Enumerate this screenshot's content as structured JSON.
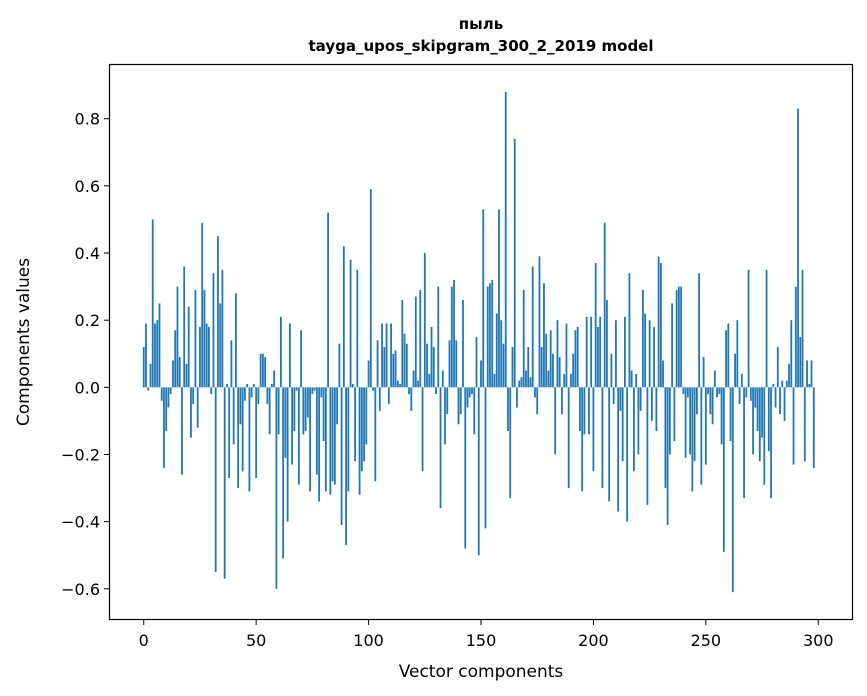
{
  "chart_data": {
    "type": "bar",
    "title": [
      "пыль",
      "tayga_upos_skipgram_300_2_2019 model"
    ],
    "xlabel": "Vector components",
    "ylabel": "Components values",
    "xlim": [
      -15,
      315
    ],
    "ylim": [
      -0.69,
      0.96
    ],
    "x_ticks": [
      0,
      50,
      100,
      150,
      200,
      250,
      300
    ],
    "x_tick_labels": [
      "0",
      "50",
      "100",
      "150",
      "200",
      "250",
      "300"
    ],
    "y_ticks": [
      -0.6,
      -0.4,
      -0.2,
      0.0,
      0.2,
      0.4,
      0.6,
      0.8
    ],
    "y_tick_labels": [
      "−0.6",
      "−0.4",
      "−0.2",
      "0.0",
      "0.2",
      "0.4",
      "0.6",
      "0.8"
    ],
    "grid": false,
    "bar_color": "#1f77b4",
    "values": [
      0.12,
      0.19,
      -0.01,
      0.07,
      0.5,
      0.19,
      0.2,
      0.25,
      -0.04,
      -0.24,
      -0.13,
      -0.06,
      -0.02,
      0.08,
      0.17,
      0.3,
      0.09,
      -0.26,
      0.36,
      0.07,
      0.24,
      -0.15,
      -0.05,
      0.29,
      -0.12,
      0.18,
      0.49,
      0.29,
      0.19,
      0.18,
      -0.02,
      0.34,
      -0.55,
      0.45,
      0.25,
      0.35,
      -0.57,
      0.01,
      -0.27,
      0.14,
      -0.17,
      0.28,
      -0.3,
      -0.11,
      -0.25,
      -0.04,
      0.01,
      -0.31,
      -0.03,
      0.01,
      -0.27,
      -0.05,
      0.1,
      0.1,
      0.09,
      -0.05,
      -0.14,
      0.01,
      0.05,
      -0.6,
      -0.14,
      0.21,
      -0.51,
      -0.21,
      -0.4,
      0.19,
      -0.23,
      -0.13,
      -0.01,
      -0.29,
      0.17,
      -0.14,
      -0.13,
      -0.09,
      -0.31,
      -0.02,
      -0.01,
      -0.26,
      -0.34,
      -0.03,
      -0.16,
      -0.31,
      0.52,
      -0.32,
      -0.28,
      -0.29,
      -0.11,
      0.13,
      -0.41,
      0.42,
      -0.47,
      -0.31,
      0.38,
      0.01,
      -0.22,
      0.35,
      -0.32,
      -0.25,
      -0.22,
      -0.17,
      0.08,
      0.59,
      -0.01,
      -0.28,
      0.14,
      -0.07,
      0.19,
      0.12,
      0.19,
      -0.05,
      0.19,
      0.1,
      0.11,
      0.02,
      0.01,
      0.26,
      0.16,
      0.13,
      -0.02,
      -0.07,
      0.05,
      0.27,
      0.02,
      0.29,
      -0.25,
      0.4,
      0.13,
      0.04,
      0.18,
      0.12,
      -0.02,
      0.3,
      -0.36,
      0.05,
      -0.17,
      -0.08,
      0.14,
      0.3,
      0.32,
      0.14,
      -0.11,
      -0.08,
      0.26,
      -0.48,
      -0.06,
      -0.03,
      -0.02,
      -0.14,
      0.15,
      -0.5,
      0.08,
      0.53,
      -0.42,
      0.3,
      0.31,
      0.32,
      0.04,
      0.22,
      0.53,
      0.2,
      0.13,
      0.88,
      -0.13,
      -0.33,
      0.12,
      0.74,
      -0.06,
      0.02,
      0.03,
      0.29,
      0.05,
      0.12,
      0.03,
      0.36,
      -0.03,
      -0.08,
      0.39,
      0.12,
      0.31,
      0.16,
      0.05,
      0.17,
      0.1,
      -0.2,
      0.2,
      0.09,
      -0.08,
      0.04,
      0.19,
      -0.3,
      0.04,
      0.1,
      0.17,
      0.18,
      -0.13,
      -0.31,
      -0.14,
      0.21,
      -0.14,
      0.21,
      -0.25,
      0.37,
      0.18,
      0.21,
      -0.3,
      0.49,
      0.26,
      -0.34,
      0.1,
      -0.05,
      0.2,
      -0.37,
      -0.07,
      -0.22,
      0.21,
      -0.4,
      0.34,
      0.05,
      -0.25,
      0.04,
      -0.2,
      -0.07,
      0.29,
      0.22,
      -0.35,
      0.2,
      -0.1,
      0.18,
      -0.13,
      0.39,
      0.37,
      0.08,
      -0.3,
      -0.41,
      -0.2,
      0.25,
      -0.16,
      0.29,
      0.3,
      0.3,
      -0.02,
      -0.21,
      -0.03,
      -0.2,
      -0.31,
      -0.22,
      -0.08,
      0.34,
      -0.29,
      0.09,
      -0.23,
      -0.02,
      -0.08,
      -0.11,
      0.05,
      -0.03,
      -0.02,
      -0.17,
      -0.49,
      0.17,
      0.19,
      -0.16,
      -0.61,
      0.1,
      0.2,
      -0.05,
      0.04,
      -0.33,
      -0.03,
      0.35,
      -0.04,
      -0.2,
      -0.06,
      -0.13,
      -0.22,
      -0.15,
      -0.29,
      0.35,
      -0.19,
      -0.33,
      0.01,
      -0.06,
      0.12,
      -0.08,
      0.02,
      -0.1,
      0.02,
      0.07,
      0.2,
      -0.23,
      0.3,
      0.83,
      0.15,
      0.35,
      -0.22,
      0.08,
      0.01,
      0.08,
      -0.24
    ]
  }
}
